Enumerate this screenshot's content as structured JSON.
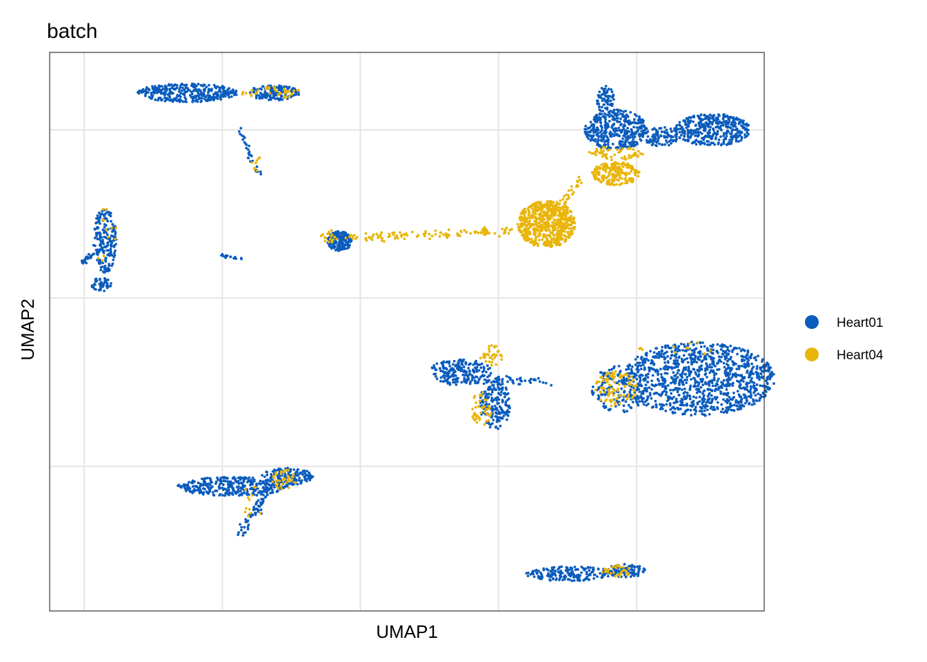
{
  "chart_data": {
    "type": "scatter",
    "title": "batch",
    "xlabel": "UMAP1",
    "ylabel": "UMAP2",
    "xlim": [
      -7.5,
      13.2
    ],
    "ylim": [
      -9.3,
      7.3
    ],
    "x_gridlines": [
      -6.5,
      -2.5,
      1.5,
      5.5,
      9.5
    ],
    "y_gridlines": [
      -5,
      0,
      5
    ],
    "x_tick_labels": [],
    "y_tick_labels": [],
    "grid": true,
    "legend": {
      "position": "right",
      "entries": [
        {
          "name": "Heart01",
          "color": "#0B5CBD"
        },
        {
          "name": "Heart04",
          "color": "#E9B50A"
        }
      ]
    },
    "series": [
      {
        "name": "Heart01",
        "color": "#0B5CBD",
        "clusters": [
          {
            "shape": "ellipse",
            "cx": -3.5,
            "cy": 6.1,
            "rx": 1.45,
            "ry": 0.28,
            "n": 340
          },
          {
            "shape": "ellipse",
            "cx": -1.0,
            "cy": 6.1,
            "rx": 0.75,
            "ry": 0.22,
            "n": 140
          },
          {
            "shape": "segment",
            "x1": -2.0,
            "y1": 5.0,
            "x2": -1.4,
            "y2": 3.6,
            "w": 0.08,
            "n": 30
          },
          {
            "shape": "ellipse",
            "cx": -5.9,
            "cy": 1.7,
            "rx": 0.35,
            "ry": 0.95,
            "n": 180
          },
          {
            "shape": "segment",
            "x1": -6.6,
            "y1": 1.05,
            "x2": -5.7,
            "y2": 1.6,
            "w": 0.1,
            "n": 35
          },
          {
            "shape": "ellipse",
            "cx": -6.0,
            "cy": 0.4,
            "rx": 0.3,
            "ry": 0.2,
            "n": 50
          },
          {
            "shape": "segment",
            "x1": -2.6,
            "y1": 1.3,
            "x2": -1.9,
            "y2": 1.15,
            "w": 0.04,
            "n": 14
          },
          {
            "shape": "ellipse",
            "cx": 0.9,
            "cy": 1.7,
            "rx": 0.35,
            "ry": 0.3,
            "n": 180
          },
          {
            "shape": "ellipse",
            "cx": 8.9,
            "cy": 5.0,
            "rx": 0.9,
            "ry": 0.6,
            "n": 380
          },
          {
            "shape": "ellipse",
            "cx": 8.6,
            "cy": 5.9,
            "rx": 0.25,
            "ry": 0.45,
            "n": 70
          },
          {
            "shape": "ellipse",
            "cx": 11.7,
            "cy": 5.0,
            "rx": 1.1,
            "ry": 0.48,
            "n": 380
          },
          {
            "shape": "ellipse",
            "cx": 10.2,
            "cy": 4.8,
            "rx": 0.5,
            "ry": 0.3,
            "n": 90
          },
          {
            "shape": "ellipse",
            "cx": 11.3,
            "cy": -2.4,
            "rx": 2.2,
            "ry": 1.1,
            "n": 1100
          },
          {
            "shape": "ellipse",
            "cx": 9.0,
            "cy": -2.7,
            "rx": 0.8,
            "ry": 0.7,
            "n": 160
          },
          {
            "shape": "ellipse",
            "cx": 4.4,
            "cy": -2.2,
            "rx": 0.9,
            "ry": 0.4,
            "n": 220
          },
          {
            "shape": "ellipse",
            "cx": 5.4,
            "cy": -3.1,
            "rx": 0.45,
            "ry": 0.8,
            "n": 190
          },
          {
            "shape": "segment",
            "x1": 5.6,
            "y1": -2.4,
            "x2": 7.0,
            "y2": -2.5,
            "w": 0.15,
            "n": 30
          },
          {
            "shape": "ellipse",
            "cx": -2.2,
            "cy": -5.6,
            "rx": 1.6,
            "ry": 0.28,
            "n": 320
          },
          {
            "shape": "ellipse",
            "cx": -0.6,
            "cy": -5.3,
            "rx": 0.75,
            "ry": 0.25,
            "n": 140
          },
          {
            "shape": "segment",
            "x1": -1.1,
            "y1": -5.6,
            "x2": -2.0,
            "y2": -7.0,
            "w": 0.15,
            "n": 70
          },
          {
            "shape": "ellipse",
            "cx": 7.6,
            "cy": -8.2,
            "rx": 1.3,
            "ry": 0.22,
            "n": 190
          },
          {
            "shape": "ellipse",
            "cx": 9.2,
            "cy": -8.1,
            "rx": 0.55,
            "ry": 0.2,
            "n": 90
          }
        ]
      },
      {
        "name": "Heart04",
        "color": "#E9B50A",
        "clusters": [
          {
            "shape": "ellipse",
            "cx": 6.9,
            "cy": 2.2,
            "rx": 0.85,
            "ry": 0.7,
            "n": 650
          },
          {
            "shape": "segment",
            "x1": 1.1,
            "y1": 1.8,
            "x2": 5.9,
            "y2": 2.0,
            "w": 0.12,
            "n": 110
          },
          {
            "shape": "ellipse",
            "cx": 8.9,
            "cy": 3.7,
            "rx": 0.7,
            "ry": 0.35,
            "n": 200
          },
          {
            "shape": "segment",
            "x1": 7.9,
            "y1": 3.5,
            "x2": 7.3,
            "y2": 2.8,
            "w": 0.12,
            "n": 25
          },
          {
            "shape": "ellipse",
            "cx": 8.9,
            "cy": 4.3,
            "rx": 0.8,
            "ry": 0.2,
            "n": 60
          },
          {
            "shape": "ellipse",
            "cx": -1.1,
            "cy": 6.1,
            "rx": 0.9,
            "ry": 0.2,
            "n": 40
          },
          {
            "shape": "ellipse",
            "cx": -1.5,
            "cy": 4.0,
            "rx": 0.15,
            "ry": 0.25,
            "n": 8
          },
          {
            "shape": "ellipse",
            "cx": 8.9,
            "cy": -2.7,
            "rx": 0.6,
            "ry": 0.55,
            "n": 90
          },
          {
            "shape": "ellipse",
            "cx": 10.8,
            "cy": -1.5,
            "rx": 1.3,
            "ry": 0.2,
            "n": 12
          },
          {
            "shape": "ellipse",
            "cx": 5.3,
            "cy": -1.7,
            "rx": 0.35,
            "ry": 0.3,
            "n": 35
          },
          {
            "shape": "ellipse",
            "cx": 5.0,
            "cy": -3.3,
            "rx": 0.3,
            "ry": 0.5,
            "n": 45
          },
          {
            "shape": "ellipse",
            "cx": -0.7,
            "cy": -5.4,
            "rx": 0.35,
            "ry": 0.3,
            "n": 40
          },
          {
            "shape": "ellipse",
            "cx": -1.6,
            "cy": -6.0,
            "rx": 0.35,
            "ry": 0.6,
            "n": 12
          },
          {
            "shape": "ellipse",
            "cx": -5.9,
            "cy": 1.8,
            "rx": 0.35,
            "ry": 0.9,
            "n": 12
          },
          {
            "shape": "ellipse",
            "cx": 8.9,
            "cy": -8.1,
            "rx": 0.5,
            "ry": 0.2,
            "n": 28
          },
          {
            "shape": "ellipse",
            "cx": 0.6,
            "cy": 1.85,
            "rx": 0.25,
            "ry": 0.2,
            "n": 20
          }
        ]
      }
    ]
  }
}
